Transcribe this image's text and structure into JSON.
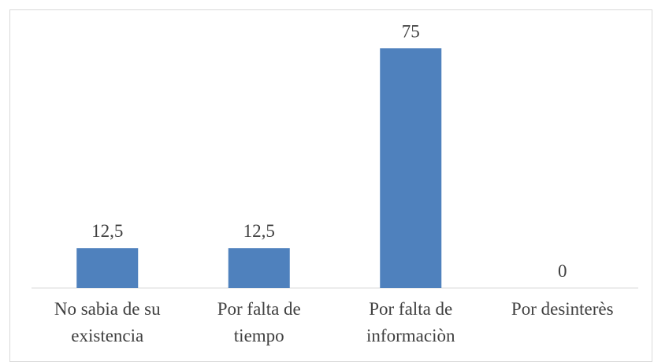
{
  "chart_data": {
    "type": "bar",
    "categories": [
      "No sabia de su existencia",
      "Por falta de tiempo",
      "Por falta de informaciòn",
      "Por desinterès"
    ],
    "values": [
      12.5,
      12.5,
      75,
      0
    ],
    "value_labels": [
      "12,5",
      "12,5",
      "75",
      "0"
    ],
    "color": "#4f81bd",
    "ylim": [
      0,
      80
    ]
  }
}
